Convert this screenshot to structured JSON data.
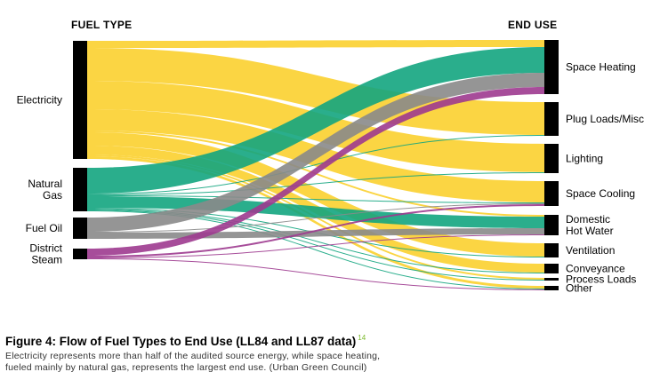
{
  "diagram": {
    "header_left": "FUEL TYPE",
    "header_right": "END USE",
    "colors": {
      "electricity": "#fbd133",
      "natural_gas": "#13a57f",
      "fuel_oil": "#8a8a8a",
      "district_steam": "#9d3a8f",
      "node": "#000000"
    },
    "sources": [
      {
        "key": "electricity",
        "lines": [
          "Electricity"
        ]
      },
      {
        "key": "natural_gas",
        "lines": [
          "Natural",
          "Gas"
        ]
      },
      {
        "key": "fuel_oil",
        "lines": [
          "Fuel Oil"
        ]
      },
      {
        "key": "district_steam",
        "lines": [
          "District",
          "Steam"
        ]
      }
    ],
    "targets": [
      {
        "key": "space_heating",
        "lines": [
          "Space Heating"
        ]
      },
      {
        "key": "plug_loads",
        "lines": [
          "Plug Loads/Misc"
        ]
      },
      {
        "key": "lighting",
        "lines": [
          "Lighting"
        ]
      },
      {
        "key": "space_cooling",
        "lines": [
          "Space Cooling"
        ]
      },
      {
        "key": "domestic_hot_water",
        "lines": [
          "Domestic",
          "Hot Water"
        ]
      },
      {
        "key": "ventilation",
        "lines": [
          "Ventilation"
        ]
      },
      {
        "key": "conveyance",
        "lines": [
          "Conveyance"
        ]
      },
      {
        "key": "process_loads",
        "lines": [
          "Process Loads"
        ]
      },
      {
        "key": "other",
        "lines": [
          "Other"
        ]
      }
    ],
    "flows": [
      {
        "from": "electricity",
        "to": "space_heating",
        "value": 8
      },
      {
        "from": "electricity",
        "to": "plug_loads",
        "value": 37
      },
      {
        "from": "electricity",
        "to": "lighting",
        "value": 32
      },
      {
        "from": "electricity",
        "to": "space_cooling",
        "value": 24
      },
      {
        "from": "electricity",
        "to": "domestic_hot_water",
        "value": 2
      },
      {
        "from": "electricity",
        "to": "ventilation",
        "value": 15
      },
      {
        "from": "electricity",
        "to": "conveyance",
        "value": 10
      },
      {
        "from": "electricity",
        "to": "process_loads",
        "value": 2
      },
      {
        "from": "electricity",
        "to": "other",
        "value": 3
      },
      {
        "from": "natural_gas",
        "to": "space_heating",
        "value": 29
      },
      {
        "from": "natural_gas",
        "to": "plug_loads",
        "value": 1
      },
      {
        "from": "natural_gas",
        "to": "lighting",
        "value": 1
      },
      {
        "from": "natural_gas",
        "to": "space_cooling",
        "value": 1
      },
      {
        "from": "natural_gas",
        "to": "domestic_hot_water",
        "value": 13
      },
      {
        "from": "natural_gas",
        "to": "ventilation",
        "value": 1
      },
      {
        "from": "natural_gas",
        "to": "conveyance",
        "value": 1
      },
      {
        "from": "natural_gas",
        "to": "process_loads",
        "value": 1
      },
      {
        "from": "natural_gas",
        "to": "other",
        "value": 1
      },
      {
        "from": "fuel_oil",
        "to": "space_heating",
        "value": 16
      },
      {
        "from": "fuel_oil",
        "to": "space_cooling",
        "value": 1
      },
      {
        "from": "fuel_oil",
        "to": "domestic_hot_water",
        "value": 7
      },
      {
        "from": "district_steam",
        "to": "space_heating",
        "value": 8
      },
      {
        "from": "district_steam",
        "to": "space_cooling",
        "value": 2
      },
      {
        "from": "district_steam",
        "to": "domestic_hot_water",
        "value": 1
      },
      {
        "from": "district_steam",
        "to": "other",
        "value": 1
      }
    ]
  },
  "caption": {
    "title": "Figure 4: Flow of Fuel Types to End Use (LL84 and LL87 data)",
    "footnote": "14",
    "text_line1": "Electricity represents more than half of the audited source energy, while space heating,",
    "text_line2": "fueled mainly by natural gas, represents the largest end use. (Urban Green Council)"
  }
}
